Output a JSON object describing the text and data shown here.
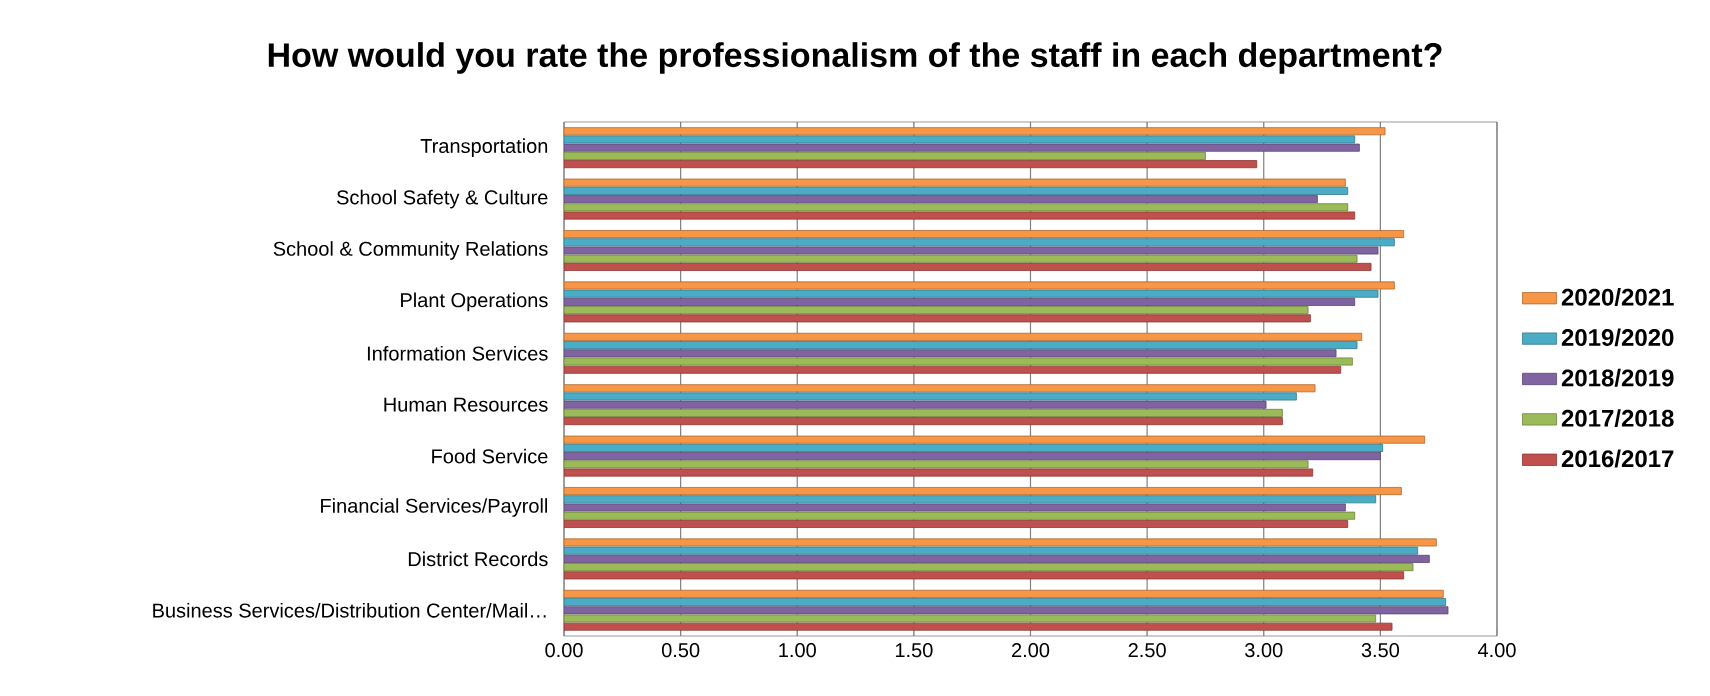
{
  "chart_data": {
    "type": "bar",
    "orientation": "horizontal",
    "title": "How would you rate the professionalism of the staff in each department?",
    "categories": [
      "Transportation",
      "School Safety & Culture",
      "School & Community Relations",
      "Plant Operations",
      "Information Services",
      "Human Resources",
      "Food Service",
      "Financial Services/Payroll",
      "District Records",
      "Business Services/Distribution Center/Mail…"
    ],
    "series": [
      {
        "name": "2020/2021",
        "color": "#f79646",
        "values": [
          3.52,
          3.35,
          3.6,
          3.56,
          3.42,
          3.22,
          3.69,
          3.59,
          3.74,
          3.77
        ]
      },
      {
        "name": "2019/2020",
        "color": "#4bacc6",
        "values": [
          3.39,
          3.36,
          3.56,
          3.49,
          3.4,
          3.14,
          3.51,
          3.48,
          3.66,
          3.78
        ]
      },
      {
        "name": "2018/2019",
        "color": "#8064a2",
        "values": [
          3.41,
          3.23,
          3.49,
          3.39,
          3.31,
          3.01,
          3.5,
          3.35,
          3.71,
          3.79
        ]
      },
      {
        "name": "2017/2018",
        "color": "#9bbb59",
        "values": [
          2.75,
          3.36,
          3.4,
          3.19,
          3.38,
          3.08,
          3.19,
          3.39,
          3.64,
          3.48
        ]
      },
      {
        "name": "2016/2017",
        "color": "#c0504d",
        "values": [
          2.97,
          3.39,
          3.46,
          3.2,
          3.33,
          3.08,
          3.21,
          3.36,
          3.6,
          3.55
        ]
      }
    ],
    "xlim": [
      0,
      4
    ],
    "xticks": [
      {
        "value": 0,
        "label": "0.00"
      },
      {
        "value": 0.5,
        "label": "0.50"
      },
      {
        "value": 1,
        "label": "1.00"
      },
      {
        "value": 1.5,
        "label": "1.50"
      },
      {
        "value": 2,
        "label": "2.00"
      },
      {
        "value": 2.5,
        "label": "2.50"
      },
      {
        "value": 3,
        "label": "3.00"
      },
      {
        "value": 3.5,
        "label": "3.50"
      },
      {
        "value": 4,
        "label": "4.00"
      }
    ],
    "grid": "x",
    "legend": "right"
  }
}
